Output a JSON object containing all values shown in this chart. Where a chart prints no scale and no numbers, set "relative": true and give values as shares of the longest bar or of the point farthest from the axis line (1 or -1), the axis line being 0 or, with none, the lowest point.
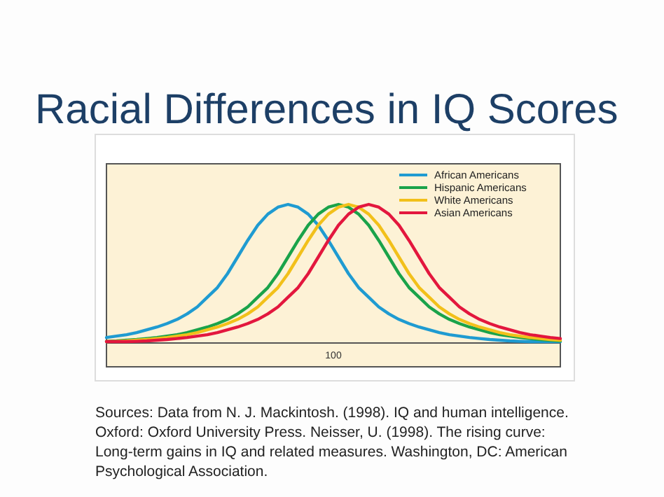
{
  "chart_data": {
    "type": "line",
    "title": "Racial Differences in IQ Scores",
    "relative": true,
    "legend": "top right",
    "marker": "none",
    "line_style": "solid",
    "categories": [
      null,
      null,
      null,
      null,
      null,
      null,
      null,
      null,
      null,
      null,
      null,
      null,
      null,
      null,
      null,
      null,
      null,
      null,
      null,
      null,
      null,
      null,
      null,
      null,
      null,
      null,
      null,
      null,
      null,
      null,
      null,
      null,
      null,
      null,
      null,
      null,
      null,
      null,
      null,
      null,
      null,
      null,
      null,
      null,
      null,
      null
    ],
    "annotations": [
      "100",
      "Sources: Data from N. J. Mackintosh. (1998). IQ and human intelligence. Oxford: Oxford University Press. Neisser, U. (1998). The rising curve: Long-term gains in IQ and related measures. Washington, DC: American Psychological Association."
    ],
    "series": [
      {
        "name": "African Americans",
        "color": "#1f9bd1",
        "values": [
          0.04,
          0.05,
          0.06,
          0.075,
          0.095,
          0.115,
          0.14,
          0.17,
          0.21,
          0.26,
          0.33,
          0.4,
          0.5,
          0.62,
          0.74,
          0.85,
          0.93,
          0.98,
          1,
          0.98,
          0.93,
          0.85,
          0.74,
          0.62,
          0.5,
          0.4,
          0.33,
          0.26,
          0.21,
          0.17,
          0.14,
          0.115,
          0.095,
          0.075,
          0.06,
          0.05,
          0.04,
          0.032,
          0.025,
          0.02,
          0.015,
          0.012,
          0.01,
          0.01,
          0.01,
          0.01
        ]
      },
      {
        "name": "Hispanic Americans",
        "color": "#1aa34a",
        "values": [
          0.012,
          0.015,
          0.02,
          0.025,
          0.032,
          0.04,
          0.05,
          0.06,
          0.075,
          0.095,
          0.115,
          0.14,
          0.17,
          0.21,
          0.26,
          0.33,
          0.4,
          0.5,
          0.62,
          0.74,
          0.85,
          0.93,
          0.98,
          1,
          0.98,
          0.93,
          0.85,
          0.74,
          0.62,
          0.5,
          0.4,
          0.33,
          0.26,
          0.21,
          0.17,
          0.14,
          0.115,
          0.095,
          0.075,
          0.06,
          0.05,
          0.04,
          0.032,
          0.025,
          0.02,
          0.015
        ]
      },
      {
        "name": "White Americans",
        "color": "#f2c01a",
        "values": [
          0.01,
          0.012,
          0.015,
          0.02,
          0.025,
          0.032,
          0.04,
          0.05,
          0.06,
          0.075,
          0.095,
          0.115,
          0.14,
          0.17,
          0.21,
          0.26,
          0.33,
          0.4,
          0.5,
          0.62,
          0.74,
          0.85,
          0.93,
          0.98,
          1,
          0.98,
          0.93,
          0.85,
          0.74,
          0.62,
          0.5,
          0.4,
          0.33,
          0.26,
          0.21,
          0.17,
          0.14,
          0.115,
          0.095,
          0.075,
          0.06,
          0.05,
          0.04,
          0.032,
          0.025,
          0.02
        ]
      },
      {
        "name": "Asian Americans",
        "color": "#e3173e",
        "values": [
          0.01,
          0.01,
          0.01,
          0.012,
          0.015,
          0.02,
          0.025,
          0.032,
          0.04,
          0.05,
          0.06,
          0.075,
          0.095,
          0.115,
          0.14,
          0.17,
          0.21,
          0.26,
          0.33,
          0.4,
          0.5,
          0.62,
          0.74,
          0.85,
          0.93,
          0.98,
          1,
          0.98,
          0.93,
          0.85,
          0.74,
          0.62,
          0.5,
          0.4,
          0.33,
          0.26,
          0.21,
          0.17,
          0.14,
          0.115,
          0.095,
          0.075,
          0.06,
          0.05,
          0.04,
          0.032
        ]
      }
    ]
  }
}
